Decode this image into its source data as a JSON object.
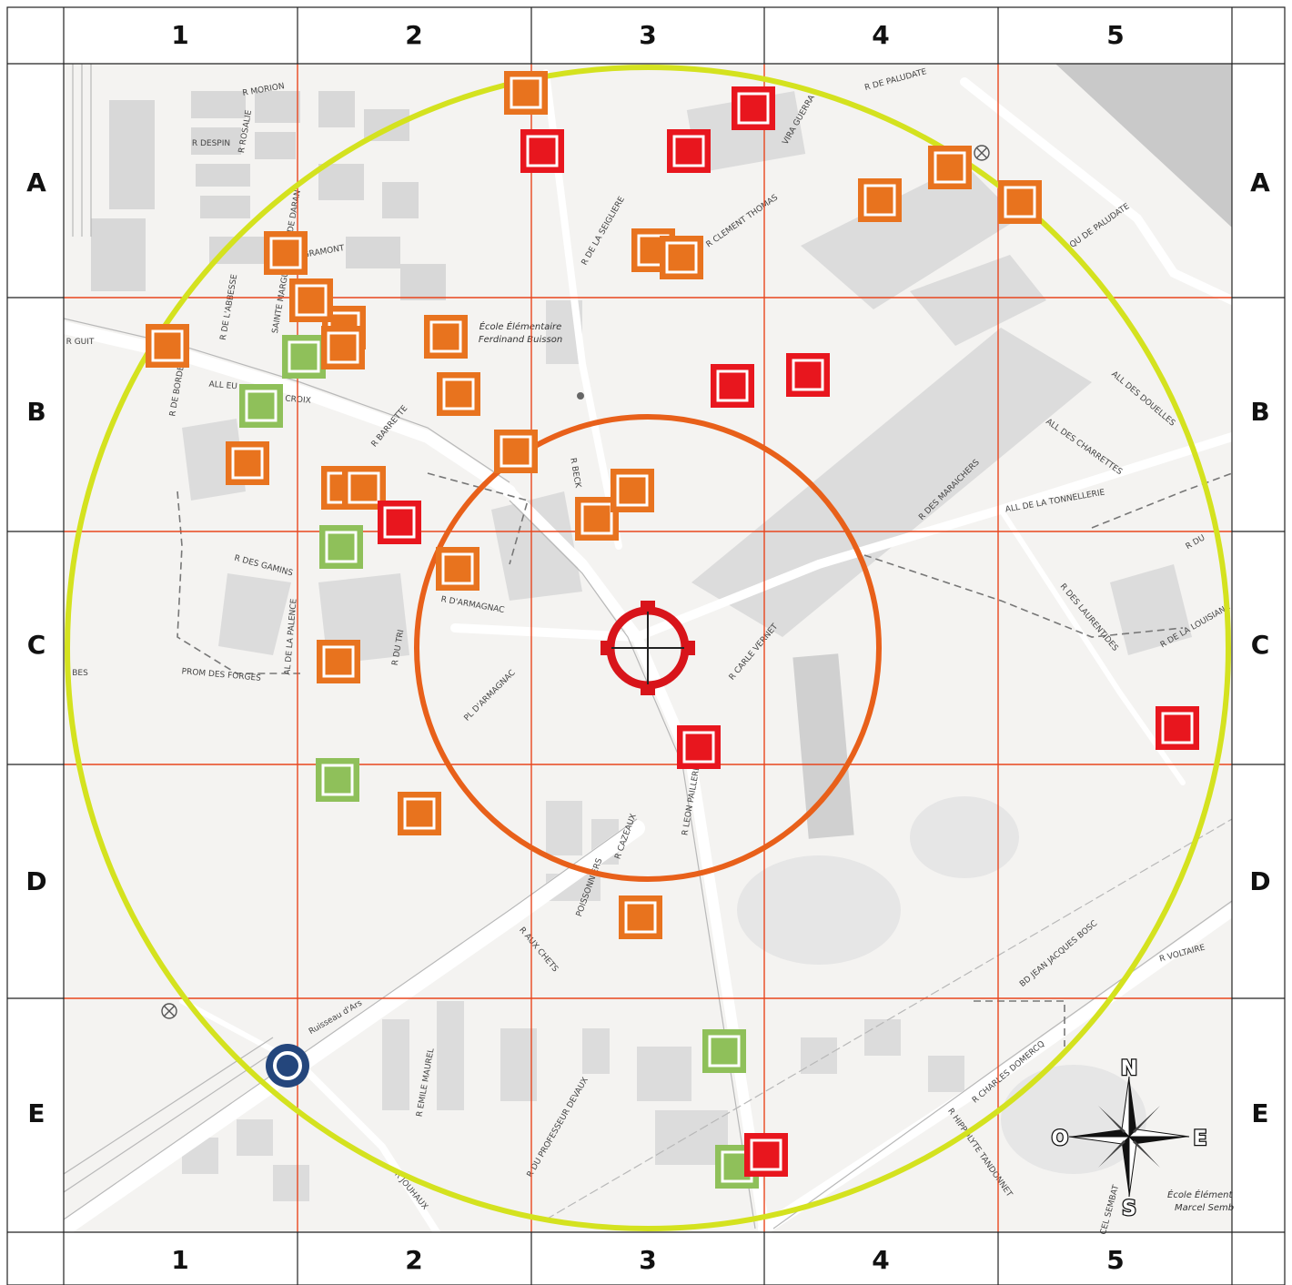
{
  "grid": {
    "columns": [
      "1",
      "2",
      "3",
      "4",
      "5"
    ],
    "rows": [
      "A",
      "B",
      "C",
      "D",
      "E"
    ]
  },
  "colors": {
    "outer_circle": "#d4e21f",
    "inner_circle": "#e8601a",
    "grid_lines": "#e8461e",
    "marker_red": "#e8161e",
    "marker_orange": "#e8731f",
    "marker_green": "#8fc05a",
    "target": "#d8141a",
    "origin": "#24467c"
  },
  "street_labels": [
    "R MORION",
    "R DESPIN",
    "R ROSALIE",
    "R DE GRAMONT",
    "R DE L'ABBESSE",
    "SAINTE MARGUERITE",
    "R DE DARAN",
    "R BARRETTE",
    "ALL EU",
    "R DE LA CROIX",
    "R DE BORDE",
    "R DE LA SEIGLIERE",
    "R CLEMENT THOMAS",
    "VIRA GUERRA",
    "R DE PALUDATE",
    "QU DE PALUDATE",
    "ALL DES DOUELLES",
    "ALL DES CHARRETTES",
    "ALL DE LA TONNELLERIE",
    "R DES MARAICHERS",
    "R DU",
    "R DES LAURENTIDES",
    "R DE LA LOUISIANE",
    "R DES GAMINS",
    "AL DE LA PALENCE",
    "R DU TRI",
    "R D'ARMAGNAC",
    "PL D'ARMAGNAC",
    "PROM DES FORGES",
    "R BECK",
    "R CARLE VERNET",
    "R LEON PAILLERE",
    "R CAZEAUX",
    "POISSONNIERS",
    "R AUX CHETS",
    "BD JEAN JACQUES BOSC",
    "R VOLTAIRE",
    "R CHARLES DOMERCQ",
    "R HIPPOLYTE TANDONNET",
    "R EMILE MAUREL",
    "R DU PROFESSEUR DEVAUX",
    "R JOUHAUX",
    "Ruisseau d'Ars",
    "R GUIT",
    "BES",
    "CEL SEMBAT"
  ],
  "school_labels": [
    [
      "École Élémentaire",
      "Ferdinand Buisson"
    ],
    [
      "École Élément",
      "Marcel Semb"
    ]
  ],
  "compass": {
    "n": "N",
    "s": "S",
    "e": "E",
    "w": "O"
  },
  "markers": [
    {
      "type": "orange",
      "cell": "A2"
    },
    {
      "type": "red",
      "cell": "A2"
    },
    {
      "type": "red",
      "cell": "A3"
    },
    {
      "type": "red",
      "cell": "A3"
    },
    {
      "type": "orange",
      "cell": "A3"
    },
    {
      "type": "orange",
      "cell": "A3"
    },
    {
      "type": "orange",
      "cell": "A4"
    },
    {
      "type": "orange",
      "cell": "A4"
    },
    {
      "type": "orange",
      "cell": "A5"
    },
    {
      "type": "orange",
      "cell": "A1"
    },
    {
      "type": "orange",
      "cell": "B2"
    },
    {
      "type": "orange",
      "cell": "B2"
    },
    {
      "type": "orange",
      "cell": "B2"
    },
    {
      "type": "orange",
      "cell": "B1"
    },
    {
      "type": "green",
      "cell": "B2"
    },
    {
      "type": "orange",
      "cell": "B2"
    },
    {
      "type": "orange",
      "cell": "B2"
    },
    {
      "type": "green",
      "cell": "B1"
    },
    {
      "type": "orange",
      "cell": "B1"
    },
    {
      "type": "orange",
      "cell": "B2"
    },
    {
      "type": "orange",
      "cell": "B2"
    },
    {
      "type": "orange",
      "cell": "B3"
    },
    {
      "type": "red",
      "cell": "B2"
    },
    {
      "type": "orange",
      "cell": "B3"
    },
    {
      "type": "orange",
      "cell": "B3"
    },
    {
      "type": "red",
      "cell": "B3"
    },
    {
      "type": "red",
      "cell": "B4"
    },
    {
      "type": "green",
      "cell": "C2"
    },
    {
      "type": "orange",
      "cell": "C2"
    },
    {
      "type": "orange",
      "cell": "C2"
    },
    {
      "type": "red",
      "cell": "C3"
    },
    {
      "type": "red",
      "cell": "C5"
    },
    {
      "type": "green",
      "cell": "D2"
    },
    {
      "type": "orange",
      "cell": "D2"
    },
    {
      "type": "orange",
      "cell": "D3"
    },
    {
      "type": "green",
      "cell": "E3"
    },
    {
      "type": "green",
      "cell": "E3"
    },
    {
      "type": "red",
      "cell": "E3"
    }
  ]
}
